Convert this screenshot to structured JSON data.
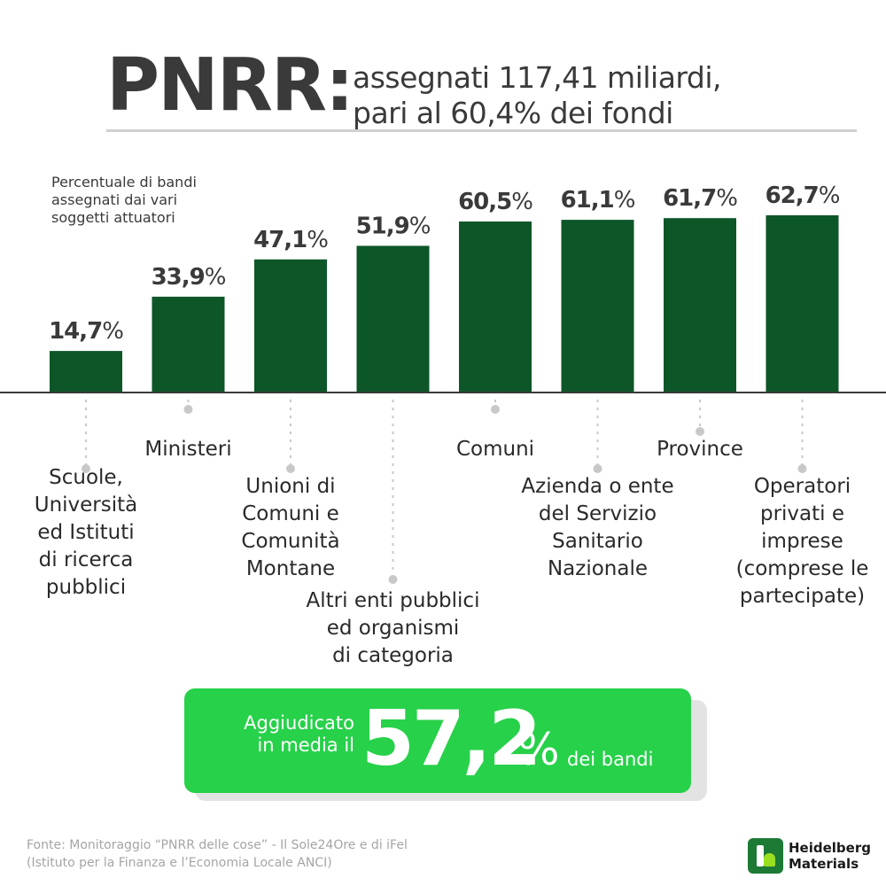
{
  "header": {
    "title_prefix": "PNRR:",
    "title_line1": "assegnati 117,41 miliardi,",
    "title_line2": "pari al 60,4% dei fondi"
  },
  "chart_data": {
    "type": "bar",
    "title": "Percentuale di bandi assegnati dai vari soggetti attuatori",
    "subtitle_lines": [
      "Percentuale di bandi",
      "assegnati dai vari",
      "soggetti attuatori"
    ],
    "categories": [
      "Scuole, Università ed Istituti di ricerca pubblici",
      "Ministeri",
      "Unioni di Comuni e Comunità Montane",
      "Altri enti pubblici ed organismi di categoria",
      "Comuni",
      "Azienda o ente del Servizio Sanitario Nazionale",
      "Province",
      "Operatori privati e imprese (comprese le partecipate)"
    ],
    "category_lines": [
      [
        "Scuole,",
        "Università",
        "ed Istituti",
        "di ricerca",
        "pubblici"
      ],
      [
        "Ministeri"
      ],
      [
        "Unioni di",
        "Comuni e",
        "Comunità",
        "Montane"
      ],
      [
        "Altri enti pubblici",
        "ed organismi",
        "di categoria"
      ],
      [
        "Comuni"
      ],
      [
        "Azienda o ente",
        "del Servizio",
        "Sanitario",
        "Nazionale"
      ],
      [
        "Province"
      ],
      [
        "Operatori",
        "privati e",
        "imprese",
        "(comprese le",
        "partecipate)"
      ]
    ],
    "values": [
      14.7,
      33.9,
      47.1,
      51.9,
      60.5,
      61.1,
      61.7,
      62.7
    ],
    "value_labels": [
      "14,7",
      "33,9",
      "47,1",
      "51,9",
      "60,5",
      "61,1",
      "61,7",
      "62,7"
    ],
    "unit": "%",
    "ylim": [
      0,
      62.7
    ],
    "grid": false,
    "bar_color": "#0d5628",
    "baseline_color": "#3a3a3a",
    "leader_color": "#c8c8c8"
  },
  "highlight": {
    "prefix_line1": "Aggiudicato",
    "prefix_line2": "in media il",
    "value": "57,2",
    "unit": "%",
    "suffix": "dei bandi",
    "color": "#27d14a"
  },
  "footer": {
    "source_line1": "Fonte: Monitoraggio “PNRR delle cose” - Il Sole24Ore e di iFel",
    "source_line2": "(Istituto per la Finanza e l’Economia Locale ANCI)",
    "logo_text": "Heidelberg\nMaterials"
  }
}
